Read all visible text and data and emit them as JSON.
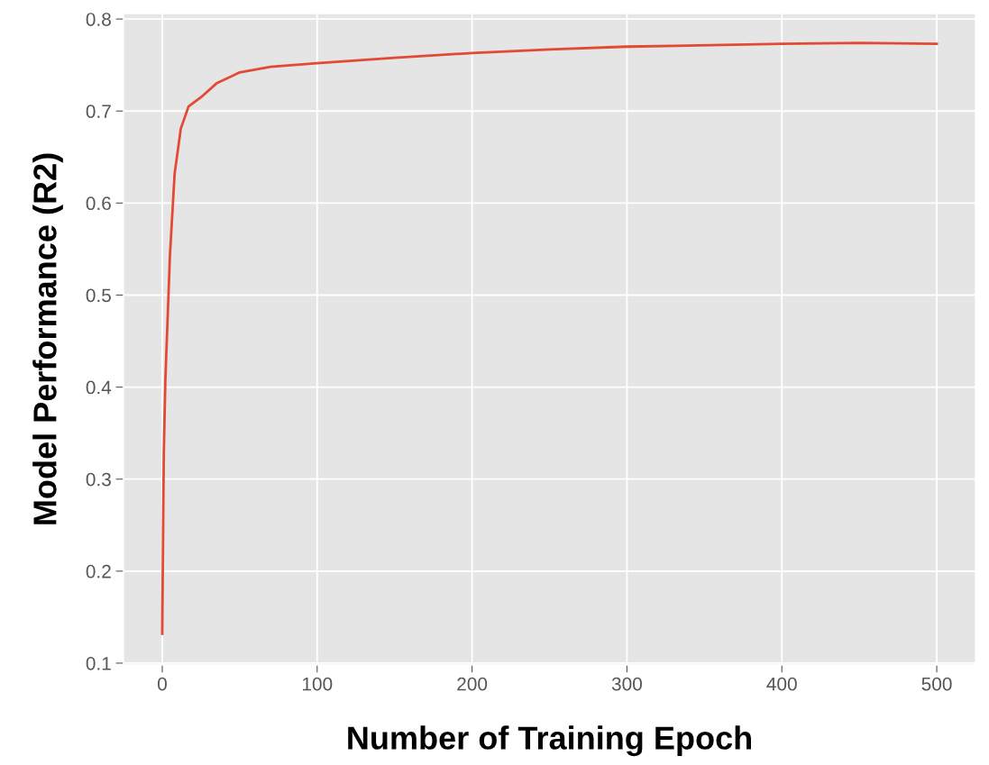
{
  "chart_data": {
    "type": "line",
    "xlabel": "Number of Training Epoch",
    "ylabel": "Model Performance (R2)",
    "x": [
      0,
      1,
      2,
      5,
      8,
      12,
      17,
      25,
      35,
      50,
      70,
      100,
      150,
      200,
      250,
      300,
      400,
      450,
      500
    ],
    "series": [
      {
        "color": "#e24a33",
        "values": [
          0.132,
          0.328,
          0.407,
          0.544,
          0.632,
          0.681,
          0.705,
          0.715,
          0.73,
          0.742,
          0.748,
          0.752,
          0.758,
          0.763,
          0.767,
          0.77,
          0.773,
          0.774,
          0.773
        ]
      }
    ],
    "xlim": [
      -25,
      525
    ],
    "xticks": [
      0,
      100,
      200,
      300,
      400,
      500
    ],
    "ylim": [
      0.098,
      0.806
    ],
    "yticks": [
      0.1,
      0.2,
      0.3,
      0.4,
      0.5,
      0.6,
      0.7,
      0.8
    ],
    "grid": true,
    "marker": "none",
    "line_style": "solid"
  }
}
